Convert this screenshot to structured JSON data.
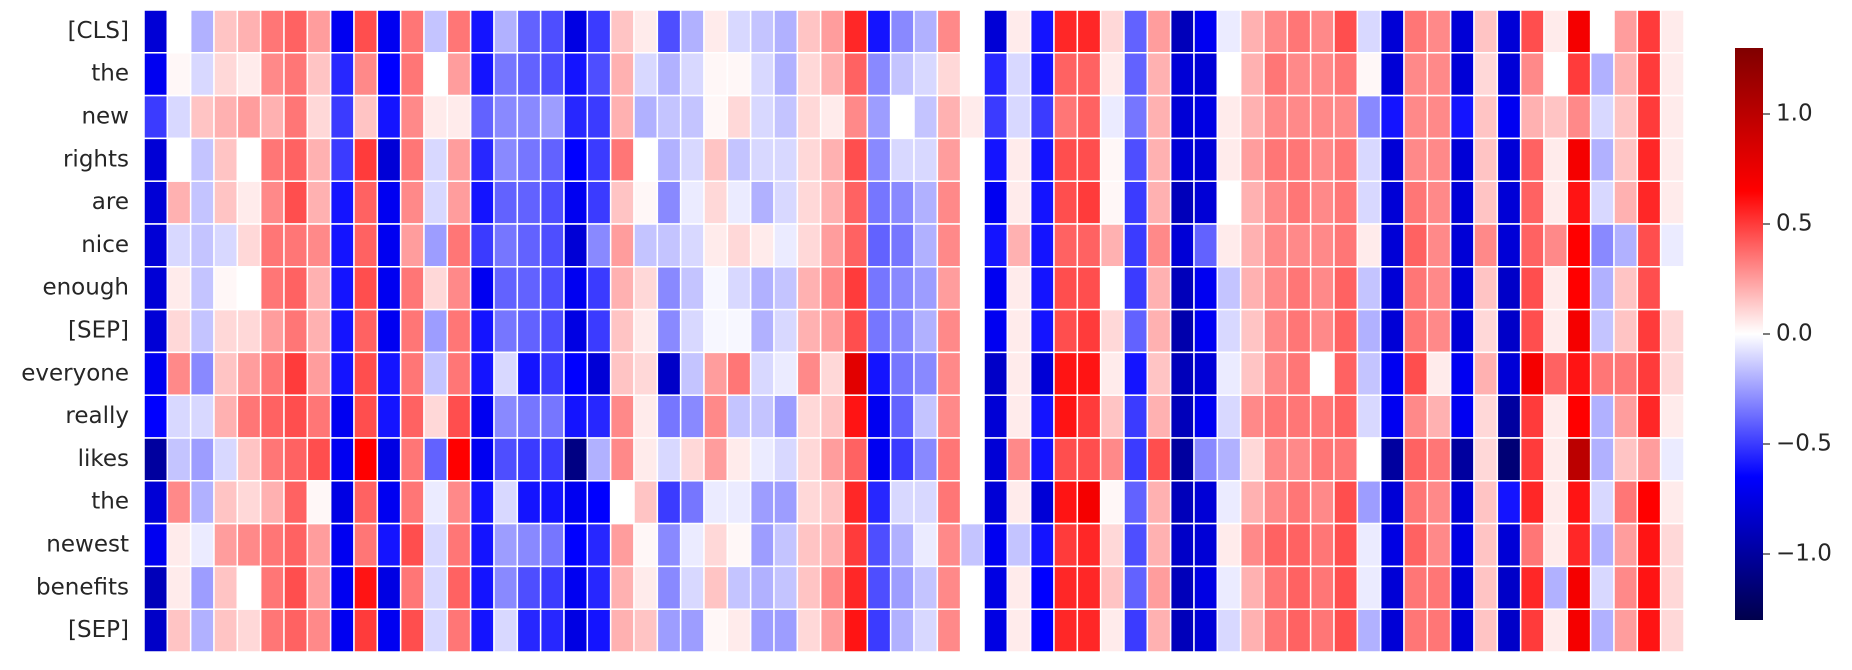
{
  "chart_data": {
    "type": "heatmap",
    "rows": [
      "[CLS]",
      "the",
      "new",
      "rights",
      "are",
      "nice",
      "enough",
      "[SEP]",
      "everyone",
      "really",
      "likes",
      "the",
      "newest",
      "benefits",
      "[SEP]"
    ],
    "colormap": [
      "#00004c",
      "#0000ff",
      "#ffffff",
      "#ff0000",
      "#800000"
    ],
    "clim": [
      -1.3,
      1.3
    ],
    "cticks": [
      {
        "value": -1.0,
        "label": "−1.0"
      },
      {
        "value": -0.5,
        "label": "−0.5"
      },
      {
        "value": 0.0,
        "label": "0.0"
      },
      {
        "value": 0.5,
        "label": "0.5"
      },
      {
        "value": 1.0,
        "label": "1.0"
      }
    ],
    "values": [
      [
        -0.8,
        0,
        -0.2,
        0.15,
        0.2,
        0.35,
        0.4,
        0.25,
        -0.7,
        0.45,
        -0.7,
        0.35,
        -0.15,
        0.35,
        -0.6,
        -0.2,
        -0.4,
        -0.45,
        -0.75,
        -0.5,
        0.15,
        0.05,
        -0.45,
        -0.2,
        0.05,
        -0.1,
        -0.15,
        -0.2,
        0.15,
        0.25,
        0.55,
        -0.6,
        -0.3,
        -0.2,
        0.3,
        0,
        -0.8,
        0.05,
        -0.6,
        0.55,
        0.55,
        0.1,
        -0.4,
        0.25,
        -0.9,
        -0.7,
        -0.05,
        0.2,
        0.3,
        0.35,
        0.3,
        0.45,
        -0.1,
        -0.8,
        0.35,
        0.3,
        -0.8,
        0.15,
        -0.8,
        0.45,
        0.05,
        0.7,
        0,
        0.25,
        0.5,
        0.05
      ],
      [
        -0.7,
        0.02,
        -0.1,
        0.1,
        0.05,
        0.3,
        0.35,
        0.15,
        -0.55,
        0.3,
        -0.65,
        0.35,
        0,
        0.25,
        -0.6,
        -0.35,
        -0.4,
        -0.45,
        -0.6,
        -0.45,
        0.2,
        -0.1,
        -0.2,
        -0.1,
        0.02,
        0.02,
        -0.1,
        -0.2,
        0.1,
        0.2,
        0.4,
        -0.3,
        -0.15,
        -0.1,
        0.1,
        0,
        -0.55,
        -0.1,
        -0.6,
        0.4,
        0.4,
        0.05,
        -0.4,
        0.2,
        -0.8,
        -0.8,
        0,
        0.2,
        0.35,
        0.3,
        0.3,
        0.35,
        0.02,
        -0.8,
        0.3,
        0.3,
        -0.8,
        0.1,
        -0.8,
        0.3,
        0,
        0.5,
        -0.2,
        0.2,
        0.5,
        0.05
      ],
      [
        -0.5,
        -0.1,
        0.15,
        0.2,
        0.25,
        0.2,
        0.35,
        0.1,
        -0.5,
        0.15,
        -0.6,
        0.3,
        0.05,
        0.05,
        -0.4,
        -0.3,
        -0.3,
        -0.25,
        -0.55,
        -0.5,
        0.2,
        -0.2,
        -0.15,
        -0.15,
        0.02,
        0.1,
        -0.1,
        -0.15,
        0.1,
        0.05,
        0.3,
        -0.25,
        0,
        -0.15,
        0.2,
        0.05,
        -0.5,
        -0.1,
        -0.5,
        0.35,
        0.4,
        -0.05,
        -0.35,
        0.2,
        -0.8,
        -0.75,
        0.05,
        0.2,
        0.3,
        0.3,
        0.3,
        0.3,
        -0.3,
        -0.6,
        0.3,
        0.3,
        -0.6,
        0.15,
        -0.7,
        0.2,
        0.15,
        0.3,
        -0.1,
        0.15,
        0.5,
        0.05
      ],
      [
        -0.8,
        0,
        -0.15,
        0.15,
        0,
        0.35,
        0.4,
        0.2,
        -0.5,
        0.5,
        -0.8,
        0.35,
        -0.1,
        0.25,
        -0.55,
        -0.3,
        -0.35,
        -0.4,
        -0.65,
        -0.5,
        0.35,
        0,
        -0.2,
        -0.1,
        0.15,
        -0.15,
        -0.1,
        -0.1,
        0.1,
        0.2,
        0.45,
        -0.3,
        -0.1,
        -0.1,
        0.25,
        0,
        -0.6,
        0.05,
        -0.6,
        0.45,
        0.45,
        0.02,
        -0.45,
        0.2,
        -0.8,
        -0.8,
        0.05,
        0.25,
        0.35,
        0.35,
        0.3,
        0.35,
        -0.1,
        -0.8,
        0.3,
        0.3,
        -0.8,
        0.15,
        -0.8,
        0.4,
        0.05,
        0.7,
        -0.2,
        0.15,
        0.55,
        0.05
      ],
      [
        -0.8,
        0.2,
        -0.15,
        0.15,
        0.05,
        0.3,
        0.45,
        0.2,
        -0.6,
        0.4,
        -0.7,
        0.3,
        -0.1,
        0.25,
        -0.6,
        -0.4,
        -0.4,
        -0.45,
        -0.7,
        -0.5,
        0.15,
        0.02,
        -0.3,
        -0.05,
        0.1,
        -0.05,
        -0.2,
        -0.1,
        0.1,
        0.2,
        0.4,
        -0.35,
        -0.3,
        -0.2,
        0.3,
        0,
        -0.7,
        0.05,
        -0.6,
        0.45,
        0.5,
        0.02,
        -0.5,
        0.2,
        -0.9,
        -0.8,
        0,
        0.2,
        0.3,
        0.35,
        0.3,
        0.35,
        -0.1,
        -0.8,
        0.35,
        0.3,
        -0.8,
        0.15,
        -0.8,
        0.4,
        0.05,
        0.6,
        -0.1,
        0.2,
        0.55,
        0.05
      ],
      [
        -0.8,
        -0.1,
        -0.15,
        -0.1,
        0.1,
        0.35,
        0.35,
        0.3,
        -0.6,
        0.4,
        -0.7,
        0.25,
        -0.25,
        0.35,
        -0.5,
        -0.35,
        -0.4,
        -0.45,
        -0.8,
        -0.3,
        0.25,
        -0.15,
        -0.15,
        -0.1,
        0.05,
        0.1,
        0.05,
        -0.05,
        0.1,
        0.25,
        0.4,
        -0.4,
        -0.35,
        -0.2,
        0.3,
        0,
        -0.6,
        0.2,
        -0.6,
        0.4,
        0.4,
        0.2,
        -0.5,
        0.3,
        -0.8,
        -0.4,
        0.05,
        0.2,
        0.3,
        0.3,
        0.3,
        0.35,
        0.05,
        -0.8,
        0.4,
        0.3,
        -0.8,
        0.3,
        -0.8,
        0.4,
        0.3,
        0.65,
        -0.3,
        -0.2,
        0.45,
        -0.05
      ],
      [
        -0.8,
        0.05,
        -0.15,
        0.02,
        0,
        0.35,
        0.4,
        0.2,
        -0.6,
        0.45,
        -0.7,
        0.35,
        0.1,
        0.3,
        -0.7,
        -0.4,
        -0.4,
        -0.45,
        -0.7,
        -0.5,
        0.2,
        0.1,
        -0.3,
        -0.15,
        -0.02,
        -0.1,
        -0.2,
        -0.15,
        0.2,
        0.3,
        0.5,
        -0.35,
        -0.3,
        -0.25,
        0.25,
        0,
        -0.7,
        0.05,
        -0.6,
        0.45,
        0.45,
        0,
        -0.5,
        0.2,
        -0.9,
        -0.7,
        -0.15,
        0.2,
        0.3,
        0.35,
        0.3,
        0.4,
        -0.15,
        -0.8,
        0.35,
        0.3,
        -0.8,
        0.15,
        -0.85,
        0.45,
        0.05,
        0.65,
        -0.2,
        0.15,
        0.45,
        0
      ],
      [
        -0.8,
        0.1,
        -0.15,
        0.1,
        0.1,
        0.25,
        0.35,
        0.2,
        -0.6,
        0.4,
        -0.7,
        0.35,
        -0.25,
        0.35,
        -0.6,
        -0.35,
        -0.4,
        -0.45,
        -0.75,
        -0.5,
        0.15,
        0.05,
        -0.3,
        -0.1,
        -0.02,
        -0.02,
        -0.2,
        -0.1,
        0.2,
        0.25,
        0.45,
        -0.35,
        -0.3,
        -0.2,
        0.3,
        0,
        -0.7,
        0.05,
        -0.6,
        0.45,
        0.5,
        0.1,
        -0.4,
        0.2,
        -0.95,
        -0.7,
        -0.1,
        0.15,
        0.3,
        0.35,
        0.3,
        0.4,
        -0.2,
        -0.8,
        0.35,
        0.3,
        -0.8,
        0.1,
        -0.85,
        0.45,
        0.05,
        0.7,
        -0.15,
        0.15,
        0.5,
        0.1
      ],
      [
        -0.7,
        0.3,
        -0.3,
        0.15,
        0.25,
        0.35,
        0.5,
        0.25,
        -0.6,
        0.45,
        -0.6,
        0.35,
        -0.15,
        0.35,
        -0.6,
        -0.1,
        -0.6,
        -0.5,
        -0.65,
        -0.8,
        0.15,
        0.1,
        -0.85,
        -0.15,
        0.25,
        0.35,
        -0.1,
        -0.05,
        0.3,
        0.1,
        0.8,
        -0.6,
        -0.35,
        -0.3,
        0.3,
        0,
        -0.85,
        0.05,
        -0.8,
        0.6,
        0.6,
        0.05,
        -0.6,
        0.15,
        -0.9,
        -0.8,
        -0.05,
        0.15,
        0.3,
        0.35,
        0,
        0.4,
        -0.15,
        -0.7,
        0.45,
        0.05,
        -0.7,
        0.2,
        -0.8,
        0.7,
        0.4,
        0.6,
        0.35,
        0.35,
        0.5,
        0.1
      ],
      [
        -0.65,
        -0.1,
        -0.1,
        0.2,
        0.35,
        0.4,
        0.45,
        0.35,
        -0.7,
        0.45,
        -0.6,
        0.4,
        0.1,
        0.45,
        -0.7,
        -0.3,
        -0.35,
        -0.35,
        -0.6,
        -0.55,
        0.3,
        0.05,
        -0.35,
        -0.3,
        0.3,
        -0.15,
        -0.15,
        -0.25,
        0.1,
        0.15,
        0.6,
        -0.7,
        -0.4,
        -0.15,
        0.3,
        0,
        -0.8,
        0.05,
        -0.6,
        0.6,
        0.5,
        0.15,
        -0.5,
        0.2,
        -0.9,
        -0.7,
        -0.1,
        0.3,
        0.35,
        0.35,
        0.35,
        0.4,
        -0.1,
        -0.7,
        0.3,
        0.2,
        -0.7,
        0.1,
        -1.0,
        0.5,
        0.05,
        0.65,
        -0.2,
        0.25,
        0.55,
        0.05
      ],
      [
        -1.0,
        -0.15,
        -0.25,
        -0.1,
        0.15,
        0.35,
        0.4,
        0.45,
        -0.7,
        0.65,
        -0.75,
        0.35,
        -0.4,
        0.65,
        -0.7,
        -0.45,
        -0.5,
        -0.5,
        -1.1,
        -0.2,
        0.3,
        0.05,
        -0.1,
        0.1,
        0.25,
        0.05,
        -0.05,
        -0.1,
        0.1,
        0.25,
        0.4,
        -0.7,
        -0.5,
        -0.3,
        0.35,
        0,
        -0.8,
        0.3,
        -0.6,
        0.45,
        0.45,
        0.3,
        -0.5,
        0.45,
        -1.0,
        -0.3,
        -0.2,
        0.1,
        0.3,
        0.3,
        0.35,
        0.35,
        0,
        -1.0,
        0.4,
        0.35,
        -1.0,
        0.1,
        -1.15,
        0.5,
        0.05,
        1.0,
        -0.2,
        0.15,
        0.25,
        -0.05
      ],
      [
        -0.8,
        0.3,
        -0.2,
        0.15,
        0.1,
        0.2,
        0.4,
        0.02,
        -0.75,
        0.4,
        -0.7,
        0.35,
        -0.05,
        0.3,
        -0.6,
        -0.1,
        -0.6,
        -0.6,
        -0.7,
        -0.65,
        0,
        0.15,
        -0.5,
        -0.35,
        -0.05,
        -0.05,
        -0.25,
        -0.25,
        0.1,
        0.15,
        0.55,
        -0.55,
        -0.1,
        -0.1,
        0.35,
        0,
        -0.8,
        0.05,
        -0.8,
        0.6,
        0.7,
        0.02,
        -0.4,
        0.2,
        -0.9,
        -0.8,
        -0.05,
        0.2,
        0.3,
        0.35,
        0.3,
        0.45,
        -0.25,
        -0.8,
        0.35,
        0.3,
        -0.8,
        0.15,
        -0.6,
        0.55,
        0.05,
        0.6,
        -0.1,
        0.35,
        0.65,
        0.05
      ],
      [
        -0.7,
        0.05,
        -0.05,
        0.25,
        0.3,
        0.35,
        0.4,
        0.25,
        -0.7,
        0.35,
        -0.6,
        0.45,
        -0.1,
        0.35,
        -0.6,
        -0.25,
        -0.3,
        -0.35,
        -0.65,
        -0.55,
        0.25,
        0.02,
        -0.3,
        -0.05,
        0.1,
        0.02,
        -0.25,
        -0.15,
        0.15,
        0.2,
        0.5,
        -0.45,
        -0.2,
        -0.05,
        0.3,
        -0.15,
        -0.7,
        -0.15,
        -0.6,
        0.5,
        0.55,
        0.1,
        -0.45,
        0.2,
        -0.85,
        -0.8,
        0.05,
        0.3,
        0.4,
        0.4,
        0.35,
        0.45,
        -0.05,
        -0.75,
        0.4,
        0.3,
        -0.75,
        0.15,
        -0.8,
        0.35,
        0.05,
        0.55,
        -0.2,
        0.25,
        0.6,
        0.1
      ],
      [
        -0.9,
        0.05,
        -0.25,
        0.15,
        0,
        0.35,
        0.45,
        0.25,
        -0.7,
        0.6,
        -0.75,
        0.35,
        -0.1,
        0.4,
        -0.6,
        -0.3,
        -0.45,
        -0.5,
        -0.7,
        -0.55,
        0.2,
        0.05,
        -0.3,
        -0.1,
        0.15,
        -0.15,
        -0.2,
        -0.15,
        0.15,
        0.3,
        0.55,
        -0.45,
        -0.25,
        -0.15,
        0.3,
        0,
        -0.75,
        0.05,
        -0.65,
        0.55,
        0.55,
        0.15,
        -0.4,
        0.25,
        -0.9,
        -0.75,
        -0.05,
        0.2,
        0.35,
        0.4,
        0.35,
        0.45,
        -0.05,
        -0.8,
        0.35,
        0.35,
        -0.8,
        0.15,
        -0.85,
        0.55,
        -0.2,
        0.7,
        -0.1,
        0.3,
        0.6,
        0.1
      ],
      [
        -0.85,
        0.15,
        -0.2,
        0.15,
        0.1,
        0.35,
        0.4,
        0.3,
        -0.7,
        0.5,
        -0.7,
        0.45,
        -0.1,
        0.35,
        -0.6,
        -0.1,
        -0.55,
        -0.55,
        -0.75,
        -0.6,
        0.2,
        0.15,
        -0.25,
        -0.25,
        0.02,
        0.05,
        -0.25,
        -0.25,
        0.1,
        0.25,
        0.6,
        -0.5,
        -0.2,
        -0.1,
        0.3,
        0,
        -0.75,
        0.05,
        -0.65,
        0.55,
        0.55,
        0.05,
        -0.5,
        0.2,
        -0.9,
        -0.8,
        -0.1,
        0.2,
        0.35,
        0.4,
        0.35,
        0.45,
        -0.2,
        -0.8,
        0.35,
        0.35,
        -0.8,
        0.15,
        -0.85,
        0.5,
        0.05,
        0.7,
        -0.2,
        0.25,
        0.6,
        0.1
      ]
    ]
  }
}
